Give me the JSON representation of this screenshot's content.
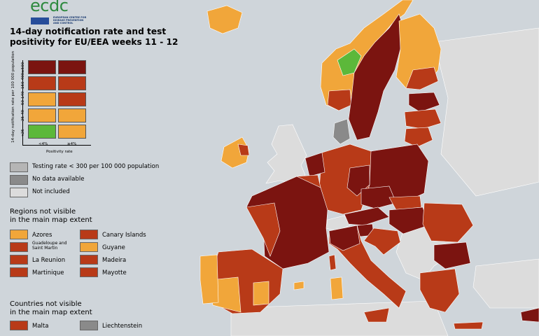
{
  "logo": {
    "text": "ecdc",
    "subtitle": "EUROPEAN CENTRE FOR DISEASE PREVENTION AND CONTROL"
  },
  "title": "14-day notification rate and test positivity for EU/EEA weeks 11 - 12",
  "matrix": {
    "y_axis_label": "14-day notification rate per 100 000 population",
    "x_axis_label": "Positivity rate",
    "rows": [
      "≥500",
      "150-499",
      "50-149",
      "25-49",
      "<25"
    ],
    "cols": [
      "<4%",
      "≥4%"
    ],
    "colors": [
      [
        "#7b1410",
        "#7b1410"
      ],
      [
        "#b83a18",
        "#b83a18"
      ],
      [
        "#f1a63a",
        "#b83a18"
      ],
      [
        "#f1a63a",
        "#f1a63a"
      ],
      [
        "#5cb83a",
        "#f1a63a"
      ]
    ]
  },
  "extra_legend": [
    {
      "label": "Testing rate < 300 per 100 000 population",
      "color": "#b5b5b5"
    },
    {
      "label": "No data available",
      "color": "#8a8a8a"
    },
    {
      "label": "Not included",
      "color": "#dcdcdc"
    }
  ],
  "regions": {
    "title_line1": "Regions not visible",
    "title_line2": "in the main map extent",
    "items": [
      {
        "label": "Azores",
        "color": "#f1a63a"
      },
      {
        "label": "Canary Islands",
        "color": "#b83a18"
      },
      {
        "label": "Guadeloupe and Saint Martin",
        "color": "#b83a18"
      },
      {
        "label": "Guyane",
        "color": "#f1a63a"
      },
      {
        "label": "La Reunion",
        "color": "#b83a18"
      },
      {
        "label": "Madeira",
        "color": "#b83a18"
      },
      {
        "label": "Martinique",
        "color": "#b83a18"
      },
      {
        "label": "Mayotte",
        "color": "#b83a18"
      }
    ]
  },
  "countries": {
    "title_line1": "Countries not visible",
    "title_line2": "in the main map extent",
    "items": [
      {
        "label": "Malta",
        "color": "#b83a18"
      },
      {
        "label": "Liechtenstein",
        "color": "#8a8a8a"
      }
    ]
  },
  "map_colors": {
    "sea": "#cfd5da",
    "not_included": "#dcdcdc",
    "dark_red": "#7b1410",
    "red": "#b83a18",
    "orange": "#f1a63a",
    "green": "#5cb83a",
    "grey": "#8a8a8a"
  }
}
